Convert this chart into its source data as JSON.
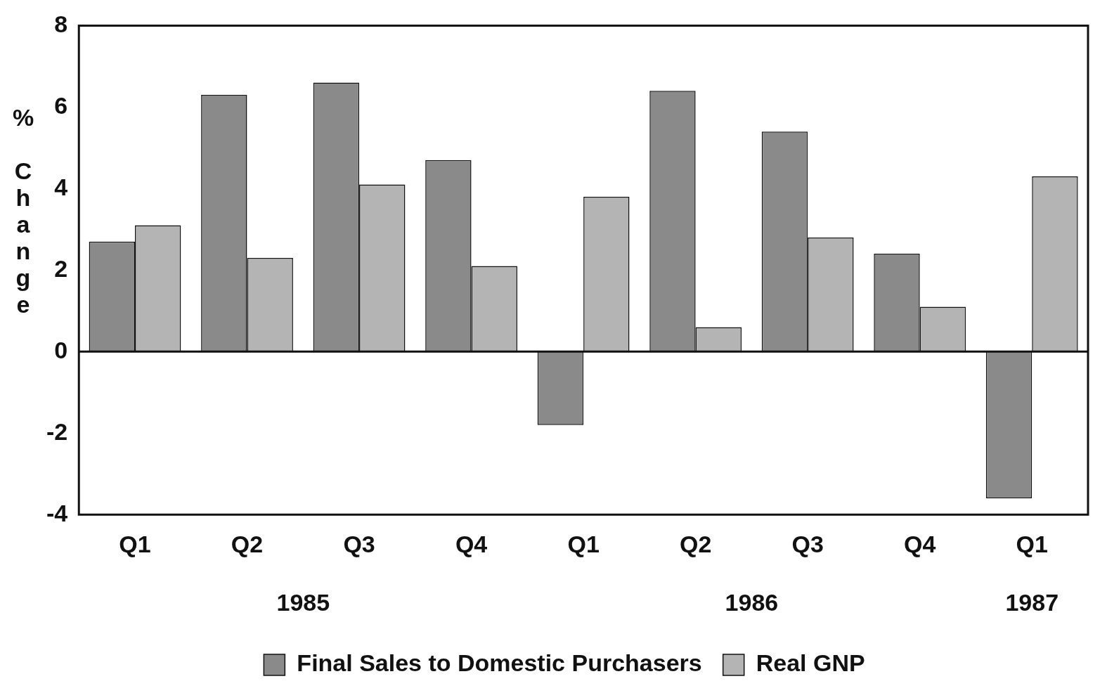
{
  "chart_data": {
    "type": "bar",
    "ylabel": "% Change",
    "categories": [
      "Q1",
      "Q2",
      "Q3",
      "Q4",
      "Q1",
      "Q2",
      "Q3",
      "Q4",
      "Q1"
    ],
    "series": [
      {
        "name": "Final Sales to Domestic Purchasers",
        "color": "#8a8a8a",
        "values": [
          2.7,
          6.3,
          6.6,
          4.7,
          -1.8,
          6.4,
          5.4,
          2.4,
          -3.6
        ]
      },
      {
        "name": "Real GNP",
        "color": "#b4b4b4",
        "values": [
          3.1,
          2.3,
          4.1,
          2.1,
          3.8,
          0.6,
          2.8,
          1.1,
          4.3
        ]
      }
    ],
    "annotations": [
      "1985",
      "1986",
      "1987"
    ],
    "ylim": [
      -4,
      8
    ],
    "yticks": [
      -4,
      -2,
      0,
      2,
      4,
      6,
      8
    ],
    "ref_lines": [
      {
        "axis": "y",
        "value": 0,
        "color": "#111111"
      }
    ],
    "grid": false,
    "legend": "bottom"
  }
}
